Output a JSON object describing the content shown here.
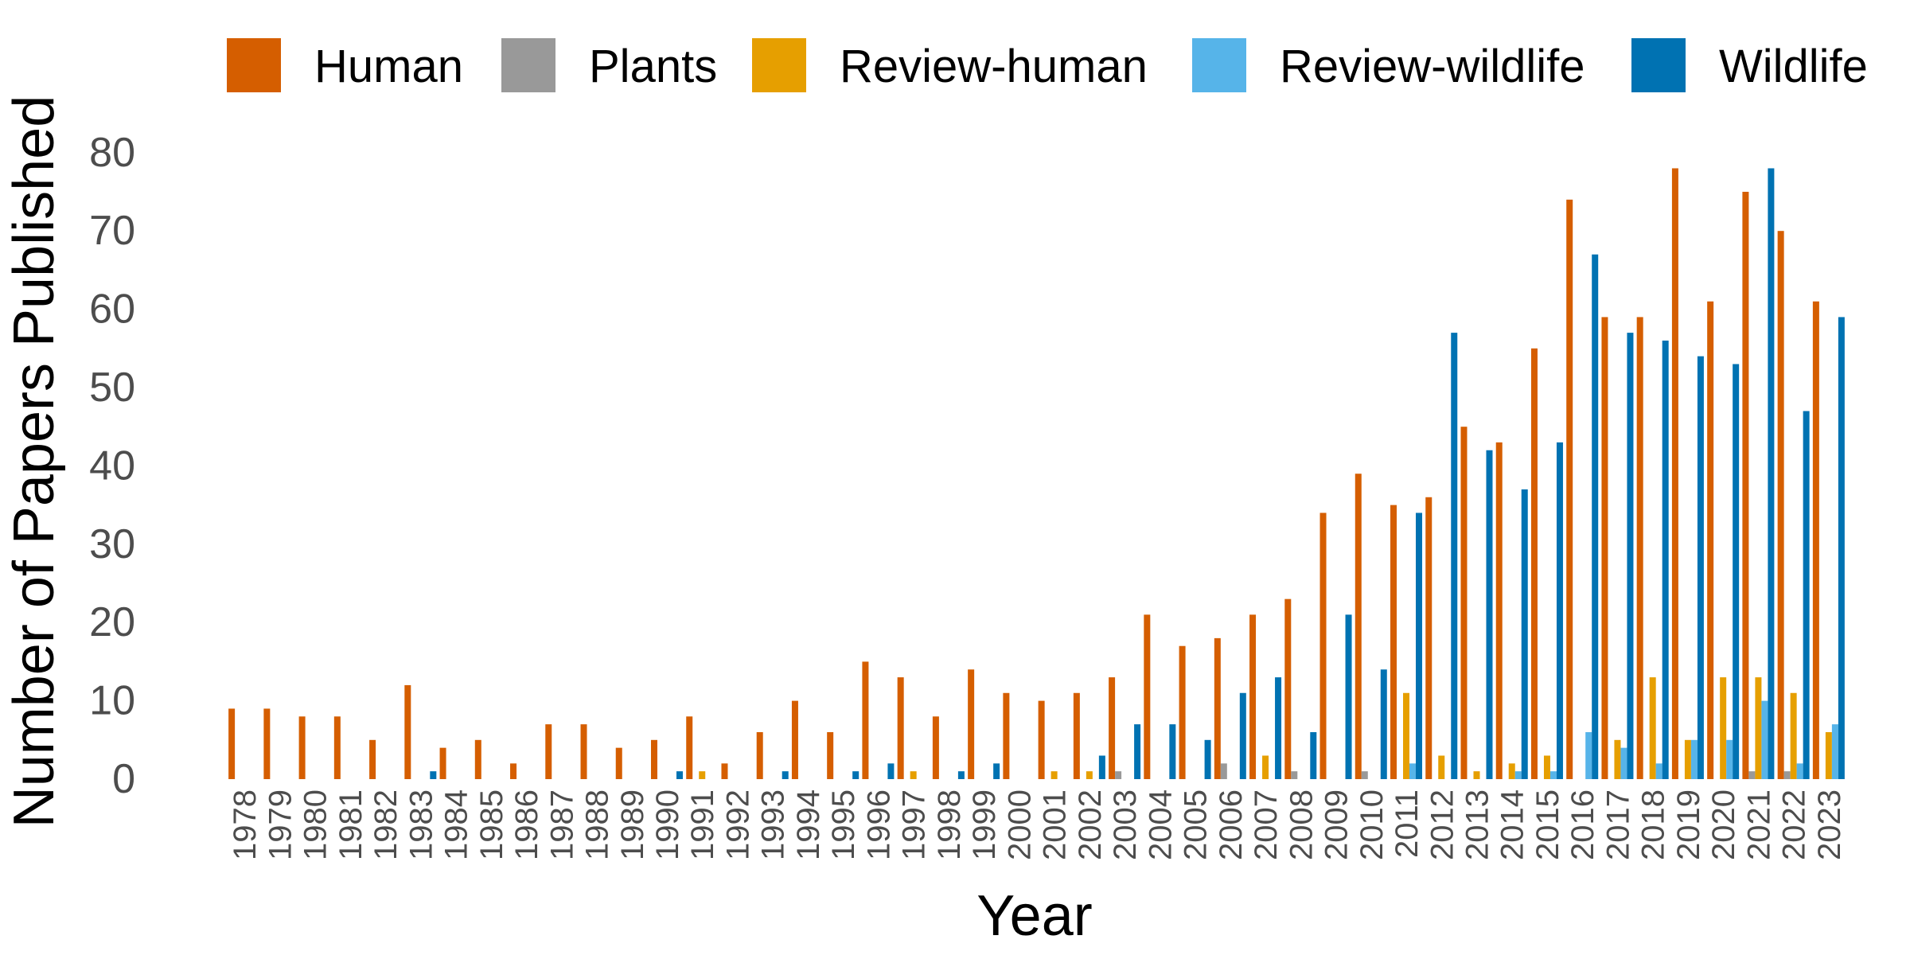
{
  "chart_data": {
    "type": "bar",
    "xlabel": "Year",
    "ylabel": "Number of Papers Published",
    "ylim": [
      0,
      85
    ],
    "yticks": [
      0,
      10,
      20,
      30,
      40,
      50,
      60,
      70,
      80
    ],
    "grid": false,
    "legend_position": "top",
    "categories": [
      "1978",
      "1979",
      "1980",
      "1981",
      "1982",
      "1983",
      "1984",
      "1985",
      "1986",
      "1987",
      "1988",
      "1989",
      "1990",
      "1991",
      "1992",
      "1993",
      "1994",
      "1995",
      "1996",
      "1997",
      "1998",
      "1999",
      "2000",
      "2001",
      "2002",
      "2003",
      "2004",
      "2005",
      "2006",
      "2007",
      "2008",
      "2009",
      "2010",
      "2011",
      "2012",
      "2013",
      "2014",
      "2015",
      "2016",
      "2017",
      "2018",
      "2019",
      "2020",
      "2021",
      "2022",
      "2023"
    ],
    "series": [
      {
        "name": "Human",
        "color": "#D55E00",
        "values": [
          9,
          9,
          8,
          8,
          5,
          12,
          4,
          5,
          2,
          7,
          7,
          4,
          5,
          8,
          2,
          6,
          10,
          6,
          15,
          13,
          8,
          14,
          11,
          10,
          11,
          13,
          21,
          17,
          18,
          21,
          23,
          34,
          39,
          35,
          36,
          45,
          43,
          55,
          74,
          59,
          59,
          78,
          61,
          75,
          70,
          61
        ]
      },
      {
        "name": "Plants",
        "color": "#999999",
        "values": [
          0,
          0,
          0,
          0,
          0,
          0,
          0,
          0,
          0,
          0,
          0,
          0,
          0,
          0,
          0,
          0,
          0,
          0,
          0,
          0,
          0,
          0,
          0,
          0,
          0,
          1,
          0,
          0,
          2,
          0,
          1,
          0,
          1,
          0,
          0,
          0,
          0,
          0,
          0,
          0,
          0,
          0,
          0,
          1,
          1,
          0
        ]
      },
      {
        "name": "Review-human",
        "color": "#E69F00",
        "values": [
          0,
          0,
          0,
          0,
          0,
          0,
          0,
          0,
          0,
          0,
          0,
          0,
          0,
          1,
          0,
          0,
          0,
          0,
          0,
          1,
          0,
          0,
          0,
          1,
          1,
          0,
          0,
          0,
          0,
          3,
          0,
          0,
          0,
          11,
          3,
          1,
          2,
          3,
          0,
          5,
          13,
          5,
          13,
          13,
          11,
          6
        ]
      },
      {
        "name": "Review-wildlife",
        "color": "#56B4E9",
        "values": [
          0,
          0,
          0,
          0,
          0,
          0,
          0,
          0,
          0,
          0,
          0,
          0,
          0,
          0,
          0,
          0,
          0,
          0,
          0,
          0,
          0,
          0,
          0,
          0,
          0,
          0,
          0,
          0,
          0,
          0,
          0,
          0,
          0,
          2,
          0,
          0,
          1,
          1,
          6,
          4,
          2,
          5,
          5,
          10,
          2,
          7
        ]
      },
      {
        "name": "Wildlife",
        "color": "#0072B2",
        "values": [
          0,
          0,
          0,
          0,
          0,
          1,
          0,
          0,
          0,
          0,
          0,
          0,
          1,
          0,
          0,
          1,
          0,
          1,
          2,
          0,
          1,
          2,
          0,
          0,
          3,
          7,
          7,
          5,
          11,
          13,
          6,
          21,
          14,
          34,
          57,
          42,
          37,
          43,
          67,
          57,
          56,
          54,
          53,
          78,
          47,
          59
        ]
      }
    ]
  }
}
